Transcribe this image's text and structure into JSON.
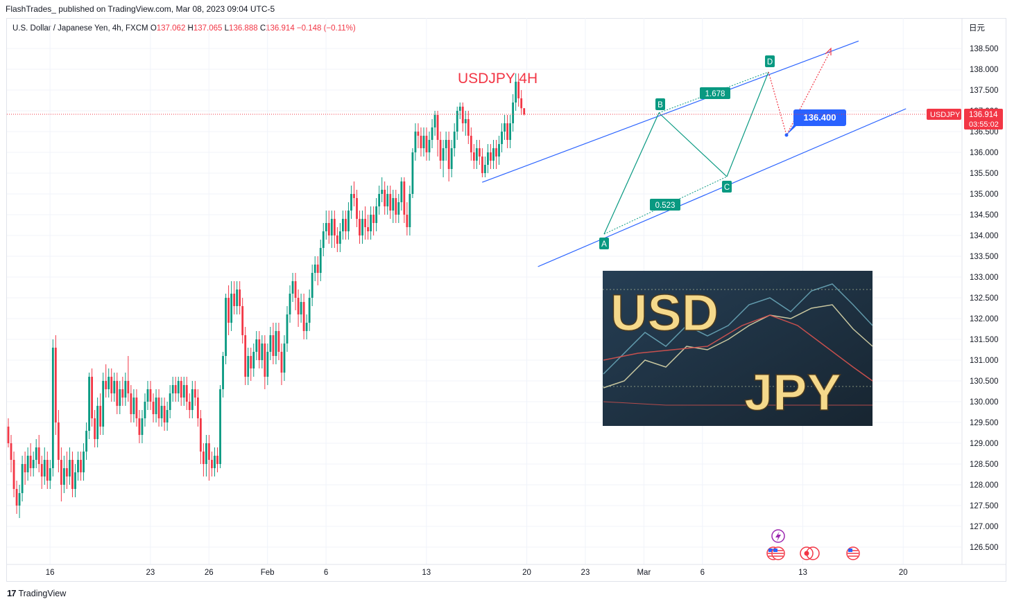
{
  "header": {
    "published_line": "FlashTrades_ published on TradingView.com, Mar 08, 2023 09:04 UTC-5"
  },
  "legend": {
    "symbol": "U.S. Dollar / Japanese Yen, 4h, FXCM",
    "open_label": "O",
    "open": "137.062",
    "high_label": "H",
    "high": "137.065",
    "low_label": "L",
    "low": "136.888",
    "close_label": "C",
    "close": "136.914",
    "change": "−0.148 (−0.11%)"
  },
  "currency_label": "日元",
  "footer": {
    "brand": "TradingView",
    "logo": "17"
  },
  "annotations": {
    "title_text": "USDJPY 4H",
    "target_label": "136.400",
    "ratio_bd": "1.678",
    "ratio_ac": "0.523",
    "point_a": "A",
    "point_b": "B",
    "point_c": "C",
    "point_d": "D",
    "price_tag_symbol": "USDJPY",
    "price_tag_value": "136.914",
    "price_tag_timer": "03:55:02",
    "banner_word1": "USD",
    "banner_word2": "JPY"
  },
  "colors": {
    "up": "#089981",
    "down": "#f23645",
    "channel": "#2962ff",
    "pattern": "#089981",
    "banner_bg": "#1e2d3a",
    "banner_text": "#f5d98b"
  },
  "icons": [
    "us-flag-icon",
    "us-flag-icon",
    "record-icon",
    "us-flag-icon",
    "lightning-icon",
    "tradingview-logo-icon"
  ],
  "chart_data": {
    "type": "candlestick",
    "title": "USDJPY 4H",
    "ylim": [
      126.25,
      139.0
    ],
    "y_ticks": [
      "138.500",
      "138.000",
      "137.500",
      "137.000",
      "136.500",
      "136.000",
      "135.500",
      "135.000",
      "134.500",
      "134.000",
      "133.500",
      "133.000",
      "132.500",
      "132.000",
      "131.500",
      "131.000",
      "130.500",
      "130.000",
      "129.500",
      "129.000",
      "128.500",
      "128.000",
      "127.500",
      "127.000",
      "126.500"
    ],
    "x_ticks": [
      {
        "label": "16",
        "index": 6
      },
      {
        "label": "23",
        "index": 42
      },
      {
        "label": "26",
        "index": 63
      },
      {
        "label": "Feb",
        "index": 84
      },
      {
        "label": "6",
        "index": 105
      },
      {
        "label": "13",
        "index": 141
      },
      {
        "label": "20",
        "index": 177
      },
      {
        "label": "23",
        "index": 198
      },
      {
        "label": "Mar",
        "index": 219
      },
      {
        "label": "6",
        "index": 240
      },
      {
        "label": "13",
        "index": 276
      },
      {
        "label": "20",
        "index": 312
      }
    ],
    "last_price": 136.914,
    "target_price": 136.4,
    "candles": [
      [
        129.4,
        129.0,
        129.6,
        128.9
      ],
      [
        129.0,
        128.6,
        129.2,
        128.3
      ],
      [
        128.6,
        127.9,
        128.8,
        127.7
      ],
      [
        127.9,
        127.5,
        128.1,
        127.3
      ],
      [
        127.5,
        127.8,
        128.0,
        127.2
      ],
      [
        127.8,
        128.5,
        128.7,
        127.6
      ],
      [
        128.5,
        128.3,
        128.8,
        128.0
      ],
      [
        128.3,
        128.7,
        128.9,
        128.1
      ],
      [
        128.7,
        128.4,
        129.0,
        128.2
      ],
      [
        128.4,
        128.6,
        128.8,
        128.2
      ],
      [
        128.6,
        128.9,
        129.1,
        128.4
      ],
      [
        128.9,
        128.5,
        129.2,
        128.3
      ],
      [
        128.5,
        128.2,
        128.7,
        127.9
      ],
      [
        128.2,
        128.6,
        128.9,
        128.0
      ],
      [
        128.6,
        128.1,
        128.8,
        127.9
      ],
      [
        128.1,
        128.4,
        128.6,
        127.9
      ],
      [
        128.4,
        131.3,
        131.5,
        128.2
      ],
      [
        131.3,
        129.5,
        131.6,
        129.2
      ],
      [
        129.5,
        128.6,
        129.8,
        128.3
      ],
      [
        128.6,
        128.0,
        128.9,
        127.6
      ],
      [
        128.0,
        128.4,
        128.7,
        127.8
      ],
      [
        128.4,
        128.2,
        128.8,
        127.9
      ],
      [
        128.2,
        128.6,
        128.9,
        128.0
      ],
      [
        128.6,
        127.9,
        128.8,
        127.7
      ],
      [
        127.9,
        128.3,
        128.5,
        127.7
      ],
      [
        128.3,
        128.6,
        128.8,
        128.1
      ],
      [
        128.6,
        128.3,
        128.8,
        128.1
      ],
      [
        128.3,
        128.8,
        129.0,
        128.1
      ],
      [
        128.8,
        129.3,
        129.5,
        128.6
      ],
      [
        129.3,
        130.6,
        130.7,
        129.1
      ],
      [
        130.6,
        129.6,
        130.8,
        129.4
      ],
      [
        129.6,
        129.1,
        129.8,
        128.9
      ],
      [
        129.1,
        129.9,
        130.1,
        128.9
      ],
      [
        129.9,
        129.4,
        130.2,
        129.2
      ],
      [
        129.4,
        130.5,
        130.7,
        129.2
      ],
      [
        130.5,
        130.3,
        130.9,
        130.1
      ],
      [
        130.3,
        130.6,
        130.8,
        130.1
      ],
      [
        130.6,
        130.2,
        130.8,
        130.0
      ],
      [
        130.2,
        130.5,
        130.7,
        130.0
      ],
      [
        130.5,
        129.9,
        130.7,
        129.7
      ],
      [
        129.9,
        130.3,
        130.5,
        129.7
      ],
      [
        130.3,
        130.1,
        130.6,
        129.9
      ],
      [
        130.1,
        130.5,
        130.7,
        129.9
      ],
      [
        130.5,
        130.2,
        131.1,
        130.0
      ],
      [
        130.2,
        129.7,
        130.4,
        129.5
      ],
      [
        129.7,
        130.1,
        130.3,
        129.5
      ],
      [
        130.1,
        129.6,
        130.3,
        129.4
      ],
      [
        129.6,
        129.2,
        129.8,
        129.0
      ],
      [
        129.2,
        129.6,
        129.8,
        129.0
      ],
      [
        129.6,
        130.0,
        130.2,
        129.4
      ],
      [
        130.0,
        130.3,
        130.5,
        129.8
      ],
      [
        130.3,
        130.0,
        130.5,
        129.8
      ],
      [
        130.0,
        129.7,
        130.2,
        129.5
      ],
      [
        129.7,
        130.1,
        130.3,
        129.5
      ],
      [
        130.1,
        129.6,
        130.3,
        129.4
      ],
      [
        129.6,
        129.9,
        130.1,
        129.4
      ],
      [
        129.9,
        129.5,
        130.1,
        129.3
      ],
      [
        129.5,
        129.8,
        130.0,
        129.3
      ],
      [
        129.8,
        130.2,
        130.4,
        129.6
      ],
      [
        130.2,
        130.4,
        130.6,
        130.0
      ],
      [
        130.4,
        130.2,
        130.6,
        130.0
      ],
      [
        130.2,
        130.5,
        130.6,
        130.0
      ],
      [
        130.5,
        130.1,
        130.6,
        129.9
      ],
      [
        130.1,
        130.4,
        130.6,
        129.9
      ],
      [
        130.4,
        130.0,
        130.6,
        129.8
      ],
      [
        130.0,
        129.8,
        130.2,
        129.6
      ],
      [
        129.8,
        130.3,
        130.5,
        129.6
      ],
      [
        130.3,
        130.1,
        130.5,
        129.9
      ],
      [
        130.1,
        129.6,
        130.3,
        129.4
      ],
      [
        129.6,
        128.8,
        129.8,
        128.5
      ],
      [
        128.8,
        128.5,
        129.0,
        128.2
      ],
      [
        128.5,
        129.0,
        129.2,
        128.2
      ],
      [
        129.0,
        128.6,
        129.2,
        128.1
      ],
      [
        128.6,
        128.4,
        128.8,
        128.2
      ],
      [
        128.4,
        128.7,
        128.9,
        128.2
      ],
      [
        128.7,
        128.5,
        128.9,
        128.3
      ],
      [
        128.5,
        130.3,
        130.4,
        128.4
      ],
      [
        130.3,
        131.1,
        131.2,
        130.1
      ],
      [
        131.1,
        132.5,
        132.6,
        130.9
      ],
      [
        132.5,
        131.9,
        132.8,
        131.6
      ],
      [
        131.9,
        132.6,
        132.9,
        131.7
      ],
      [
        132.6,
        132.3,
        132.9,
        132.1
      ],
      [
        132.3,
        132.7,
        132.9,
        132.1
      ],
      [
        132.7,
        132.3,
        132.9,
        132.1
      ],
      [
        132.3,
        131.6,
        132.5,
        131.4
      ],
      [
        131.6,
        130.6,
        131.8,
        130.4
      ],
      [
        130.6,
        131.1,
        131.3,
        130.4
      ],
      [
        131.1,
        130.8,
        131.3,
        130.5
      ],
      [
        130.8,
        131.2,
        131.4,
        130.6
      ],
      [
        131.2,
        131.5,
        131.7,
        131.0
      ],
      [
        131.5,
        131.0,
        131.7,
        130.8
      ],
      [
        131.0,
        131.4,
        131.6,
        130.8
      ],
      [
        131.4,
        130.6,
        131.6,
        130.3
      ],
      [
        130.6,
        131.2,
        131.4,
        130.4
      ],
      [
        131.2,
        131.6,
        131.8,
        131.0
      ],
      [
        131.6,
        131.1,
        131.9,
        130.9
      ],
      [
        131.1,
        131.7,
        131.9,
        130.9
      ],
      [
        131.7,
        131.2,
        131.9,
        131.0
      ],
      [
        131.2,
        130.7,
        131.4,
        130.4
      ],
      [
        130.7,
        131.4,
        131.6,
        130.5
      ],
      [
        131.4,
        132.1,
        132.3,
        131.2
      ],
      [
        132.1,
        132.6,
        132.8,
        131.9
      ],
      [
        132.6,
        132.9,
        133.1,
        132.4
      ],
      [
        132.9,
        132.5,
        133.1,
        132.2
      ],
      [
        132.5,
        132.1,
        132.7,
        131.8
      ],
      [
        132.1,
        132.4,
        132.6,
        131.9
      ],
      [
        132.4,
        131.7,
        132.6,
        131.5
      ],
      [
        131.7,
        131.9,
        132.1,
        131.5
      ],
      [
        131.9,
        132.5,
        132.7,
        131.7
      ],
      [
        132.5,
        133.1,
        133.3,
        132.3
      ],
      [
        133.1,
        133.3,
        133.5,
        132.9
      ],
      [
        133.3,
        133.1,
        133.5,
        132.8
      ],
      [
        133.1,
        133.7,
        133.9,
        132.9
      ],
      [
        133.7,
        134.1,
        134.3,
        133.5
      ],
      [
        134.1,
        134.3,
        134.6,
        133.9
      ],
      [
        134.3,
        134.0,
        134.6,
        133.8
      ],
      [
        134.0,
        134.4,
        134.6,
        133.7
      ],
      [
        134.4,
        134.0,
        134.6,
        133.7
      ],
      [
        134.0,
        133.8,
        134.2,
        133.6
      ],
      [
        133.8,
        134.1,
        134.3,
        133.6
      ],
      [
        134.1,
        134.4,
        134.6,
        133.9
      ],
      [
        134.4,
        134.1,
        134.6,
        133.9
      ],
      [
        134.1,
        134.6,
        134.8,
        133.9
      ],
      [
        134.6,
        135.0,
        135.2,
        134.4
      ],
      [
        135.0,
        134.9,
        135.3,
        134.7
      ],
      [
        134.9,
        134.4,
        135.1,
        134.2
      ],
      [
        134.4,
        134.0,
        134.6,
        133.8
      ],
      [
        134.0,
        134.4,
        134.6,
        133.8
      ],
      [
        134.4,
        134.2,
        134.7,
        133.9
      ],
      [
        134.2,
        134.1,
        134.5,
        133.9
      ],
      [
        134.1,
        134.5,
        134.7,
        133.9
      ],
      [
        134.5,
        134.3,
        134.7,
        134.0
      ],
      [
        134.3,
        134.7,
        134.9,
        134.1
      ],
      [
        134.7,
        135.0,
        135.2,
        134.5
      ],
      [
        135.0,
        135.1,
        135.4,
        134.8
      ],
      [
        135.1,
        134.7,
        135.3,
        134.5
      ],
      [
        134.7,
        135.0,
        135.2,
        134.5
      ],
      [
        135.0,
        134.6,
        135.2,
        134.4
      ],
      [
        134.6,
        134.9,
        135.1,
        134.3
      ],
      [
        134.9,
        134.5,
        135.1,
        134.3
      ],
      [
        134.5,
        134.8,
        135.0,
        134.3
      ],
      [
        134.8,
        135.3,
        135.4,
        134.6
      ],
      [
        135.3,
        134.5,
        135.4,
        134.3
      ],
      [
        134.5,
        134.2,
        134.8,
        134.0
      ],
      [
        134.2,
        135.0,
        135.2,
        134.0
      ],
      [
        135.0,
        136.0,
        136.1,
        134.9
      ],
      [
        136.0,
        136.5,
        136.7,
        135.8
      ],
      [
        136.5,
        136.4,
        136.7,
        136.1
      ],
      [
        136.4,
        136.1,
        136.6,
        135.9
      ],
      [
        136.1,
        136.4,
        136.6,
        135.9
      ],
      [
        136.4,
        136.0,
        136.6,
        135.8
      ],
      [
        136.0,
        136.3,
        136.5,
        135.8
      ],
      [
        136.3,
        136.6,
        136.8,
        136.1
      ],
      [
        136.6,
        136.9,
        137.0,
        136.4
      ],
      [
        136.9,
        136.3,
        137.0,
        135.9
      ],
      [
        136.3,
        135.8,
        136.5,
        135.6
      ],
      [
        135.8,
        136.1,
        136.3,
        135.4
      ],
      [
        136.1,
        136.3,
        136.5,
        135.8
      ],
      [
        136.3,
        135.6,
        136.5,
        135.3
      ],
      [
        135.6,
        136.1,
        136.3,
        135.4
      ],
      [
        136.1,
        136.5,
        136.7,
        135.9
      ],
      [
        136.5,
        137.0,
        137.1,
        136.3
      ],
      [
        137.0,
        137.1,
        137.2,
        136.8
      ],
      [
        137.1,
        136.7,
        137.2,
        136.5
      ],
      [
        136.7,
        136.8,
        137.0,
        136.4
      ],
      [
        136.8,
        136.4,
        137.0,
        136.2
      ],
      [
        136.4,
        136.0,
        136.6,
        135.8
      ],
      [
        136.0,
        135.8,
        136.2,
        135.6
      ],
      [
        135.8,
        136.1,
        136.3,
        135.6
      ],
      [
        136.1,
        135.9,
        136.3,
        135.7
      ],
      [
        135.9,
        135.5,
        136.1,
        135.4
      ],
      [
        135.5,
        135.7,
        135.9,
        135.4
      ],
      [
        135.7,
        136.0,
        136.2,
        135.5
      ],
      [
        136.0,
        135.8,
        136.2,
        135.6
      ],
      [
        135.8,
        136.1,
        136.3,
        135.6
      ],
      [
        136.1,
        135.9,
        136.3,
        135.6
      ],
      [
        135.9,
        136.2,
        136.4,
        135.7
      ],
      [
        136.2,
        136.5,
        136.7,
        136.0
      ],
      [
        136.5,
        136.7,
        136.9,
        136.3
      ],
      [
        136.7,
        136.3,
        136.9,
        136.1
      ],
      [
        136.3,
        136.7,
        136.9,
        136.1
      ],
      [
        136.7,
        137.2,
        137.4,
        136.5
      ],
      [
        137.2,
        137.7,
        137.9,
        137.0
      ],
      [
        137.7,
        137.3,
        137.9,
        137.1
      ],
      [
        137.3,
        137.062,
        137.5,
        136.9
      ],
      [
        137.062,
        136.914,
        137.065,
        136.888
      ]
    ],
    "channel_upper": [
      [
        136.0,
        135.28
      ],
      [
        146.0,
        138.68
      ]
    ],
    "channel_lower": [
      [
        142.0,
        133.25
      ],
      [
        160.0,
        137.05
      ]
    ],
    "pattern_points": [
      {
        "label": "A",
        "index": 175,
        "price": 134.05
      },
      {
        "label": "B",
        "index": 184,
        "price": 136.95
      },
      {
        "label": "C",
        "index": 206,
        "price": 135.45
      },
      {
        "label": "D",
        "index": 216,
        "price": 137.93
      }
    ],
    "projection": [
      {
        "index": 216,
        "price": 137.93
      },
      {
        "index": 222,
        "price": 136.4
      },
      {
        "index": 238,
        "price": 138.5
      }
    ]
  }
}
